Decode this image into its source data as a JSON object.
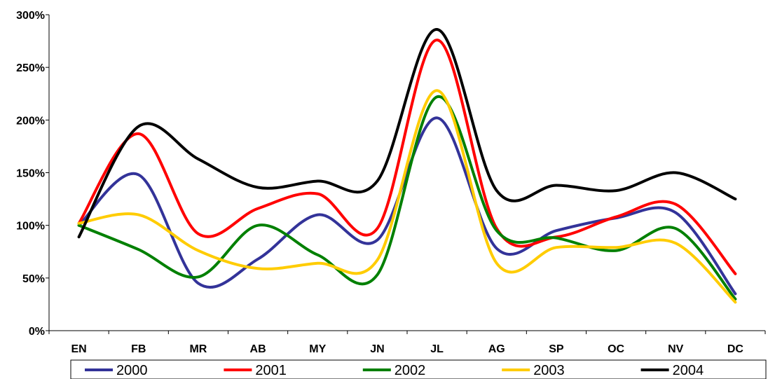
{
  "chart_data": {
    "type": "line",
    "title": "",
    "xlabel": "",
    "ylabel": "",
    "categories": [
      "EN",
      "FB",
      "MR",
      "AB",
      "MY",
      "JN",
      "JL",
      "AG",
      "SP",
      "OC",
      "NV",
      "DC"
    ],
    "y_ticks": [
      "0%",
      "50%",
      "100%",
      "150%",
      "200%",
      "250%",
      "300%"
    ],
    "ylim": [
      0,
      300
    ],
    "grid": false,
    "legend_position": "bottom",
    "series": [
      {
        "name": "2000",
        "color": "#333399",
        "values": [
          100,
          148,
          45,
          68,
          110,
          86,
          202,
          78,
          95,
          107,
          112,
          35
        ]
      },
      {
        "name": "2001",
        "color": "#ff0000",
        "values": [
          102,
          187,
          92,
          116,
          130,
          97,
          276,
          97,
          89,
          108,
          120,
          54
        ]
      },
      {
        "name": "2002",
        "color": "#008000",
        "values": [
          100,
          77,
          51,
          100,
          72,
          53,
          222,
          95,
          88,
          76,
          97,
          30
        ]
      },
      {
        "name": "2003",
        "color": "#ffcc00",
        "values": [
          102,
          110,
          76,
          59,
          64,
          67,
          228,
          64,
          79,
          79,
          83,
          27
        ]
      },
      {
        "name": "2004",
        "color": "#000000",
        "values": [
          89,
          194,
          163,
          136,
          142,
          142,
          286,
          133,
          138,
          133,
          150,
          125
        ]
      }
    ]
  }
}
